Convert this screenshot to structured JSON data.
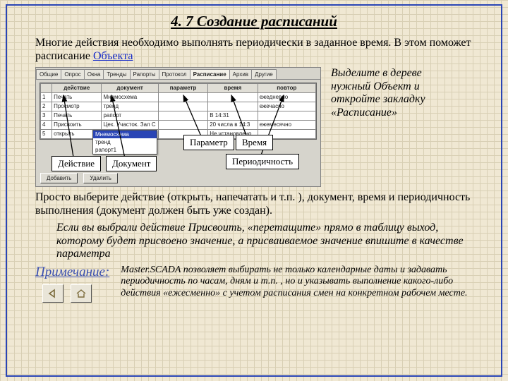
{
  "title": "4. 7 Создание расписаний",
  "intro_a": "Многие действия необходимо выполнять периодически в заданное время. В этом поможет расписание ",
  "intro_link": "Объекта",
  "tabs": [
    "Общие",
    "Опрос",
    "Окна",
    "Тренды",
    "Рапорты",
    "Протокол",
    "Расписание",
    "Архив",
    "Другие"
  ],
  "grid": {
    "headers": [
      "",
      "действие",
      "документ",
      "параметр",
      "время",
      "повтор"
    ],
    "col_widths": [
      "16px",
      "70px",
      "80px",
      "70px",
      "70px",
      "82px"
    ],
    "rows": [
      [
        "1",
        "Печать",
        "Мнемосхема",
        "",
        "",
        "ежедневно"
      ],
      [
        "2",
        "Просмотр",
        "тренд",
        "",
        "",
        "ежечасно"
      ],
      [
        "3",
        "Печать",
        "рапорт",
        "",
        "В 14:31",
        ""
      ],
      [
        "4",
        "Присвоить",
        "Цех. Участок. Зал С",
        "",
        "20 числа в 14:3",
        "ежемесячно"
      ],
      [
        "5",
        "открыть",
        "Мнемосхема",
        "",
        "Не установлено",
        ""
      ]
    ]
  },
  "dropdown": {
    "selected": "Мнемосхема",
    "items": [
      "тренд",
      "рапорт1"
    ]
  },
  "buttons": {
    "add": "Добавить",
    "del": "Удалить"
  },
  "callouts": {
    "act": "Действие",
    "doc": "Документ",
    "param": "Параметр",
    "time": "Время",
    "period": "Периодичность"
  },
  "side_text": "Выделите в дереве нужный Объект и откройте закладку «Расписание»",
  "para2": "Просто выберите действие (открыть, напечатать и  т.п. ), документ, время и периодичность выполнения (документ должен быть уже создан).",
  "para3": "Если вы выбрали действие Присвоить, «перетащите» прямо в таблицу выход, которому будет присвоено значение, а присваиваемое значение впишите в качестве параметра",
  "note_label": "Примечание:",
  "note_body": "Master.SCADA позволяет выбирать не только календарные даты и задавать периодичность по часам, дням и т.п. , но и указывать выполнение какого-либо действия «ежесменно» с учетом расписания смен на конкретном рабочем месте.",
  "arrow_color": "#000000"
}
